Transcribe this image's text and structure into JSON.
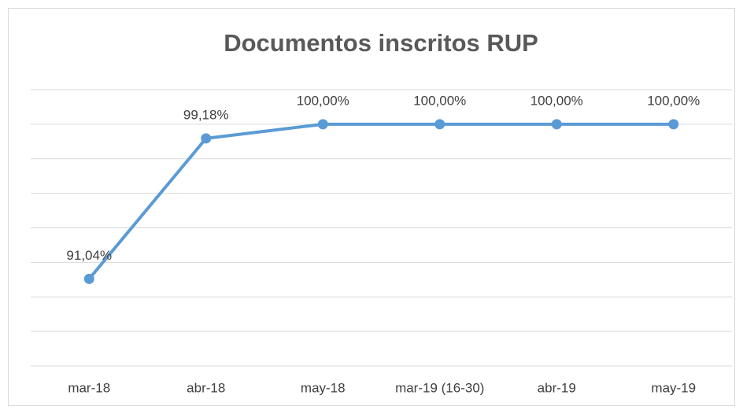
{
  "chart_data": {
    "type": "line",
    "title": "Documentos inscritos RUP",
    "categories": [
      "mar-18",
      "abr-18",
      "may-18",
      "mar-19 (16-30)",
      "abr-19",
      "may-19"
    ],
    "series": [
      {
        "name": "Documentos inscritos RUP",
        "color": "#5b9bd5",
        "values": [
          91.04,
          99.18,
          100,
          100,
          100,
          100
        ],
        "value_labels": [
          "91,04%",
          "99,18%",
          "100,00%",
          "100,00%",
          "100,00%",
          "100,00%"
        ]
      }
    ],
    "ylim": [
      86,
      102
    ],
    "yticks": [
      86,
      88,
      90,
      92,
      94,
      96,
      98,
      100,
      102
    ],
    "grid": true
  }
}
